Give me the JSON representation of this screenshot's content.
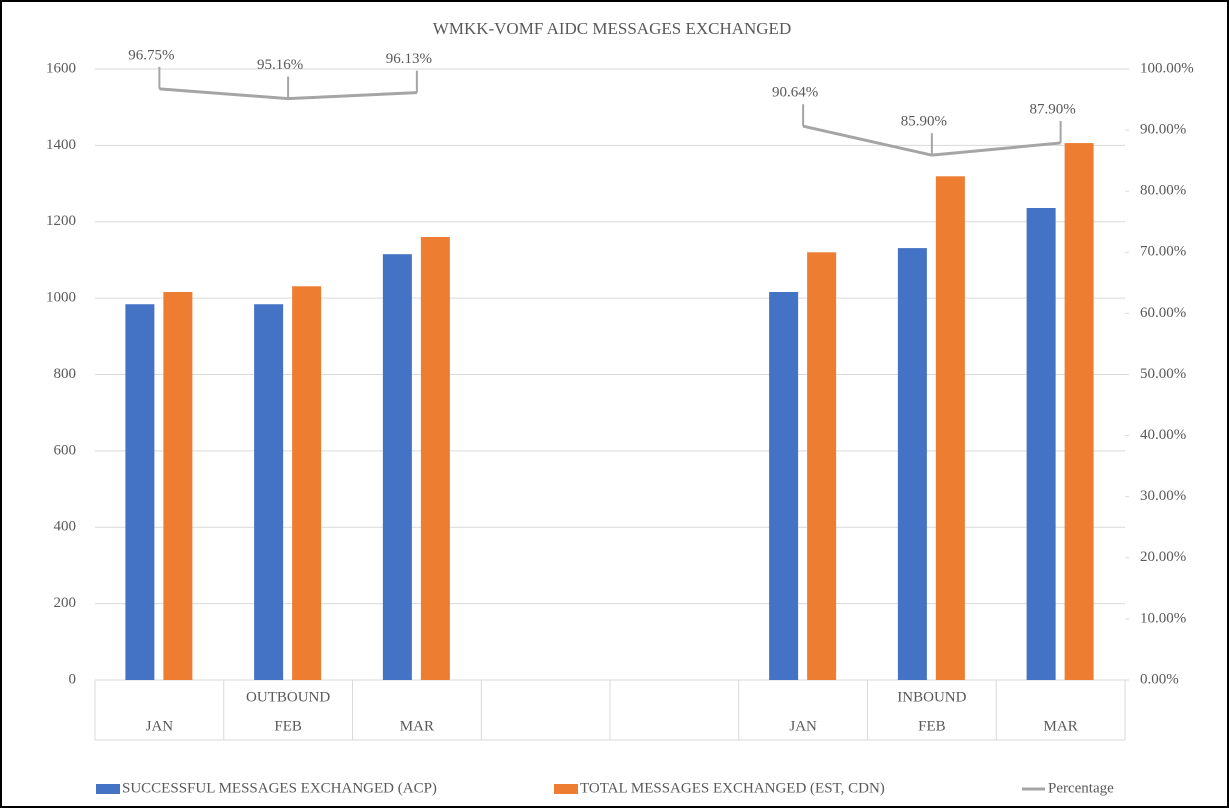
{
  "chart_data": {
    "type": "bar",
    "title": "WMKK-VOMF AIDC MESSAGES EXCHANGED",
    "categories": [
      "JAN",
      "FEB",
      "MAR",
      null,
      null,
      "JAN",
      "FEB",
      "MAR"
    ],
    "groups": [
      "OUTBOUND",
      "OUTBOUND",
      "OUTBOUND",
      null,
      null,
      "INBOUND",
      "INBOUND",
      "INBOUND"
    ],
    "series": [
      {
        "name": "SUCCESSFUL MESSAGES EXCHANGED (ACP)",
        "color": "#4472c4",
        "type": "bar",
        "values": [
          984,
          984,
          1115,
          null,
          null,
          1016,
          1131,
          1236
        ]
      },
      {
        "name": "TOTAL MESSAGES EXCHANGED (EST, CDN)",
        "color": "#ed7d31",
        "type": "bar",
        "values": [
          1016,
          1031,
          1160,
          null,
          null,
          1120,
          1319,
          1406
        ]
      },
      {
        "name": "Percentage",
        "color": "#a5a5a5",
        "type": "line",
        "axis": "y2",
        "values": [
          96.75,
          95.16,
          96.13,
          null,
          null,
          90.64,
          85.9,
          87.9
        ],
        "value_labels": [
          "96.75%",
          "95.16%",
          "96.13%",
          null,
          null,
          "90.64%",
          "85.90%",
          "87.90%"
        ]
      }
    ],
    "ylim": [
      0,
      1600
    ],
    "yticks": [
      0,
      200,
      400,
      600,
      800,
      1000,
      1200,
      1400,
      1600
    ],
    "y2lim": [
      0,
      100
    ],
    "y2ticks": [
      {
        "value": 0,
        "label": "0.00%"
      },
      {
        "value": 10,
        "label": "10.00%"
      },
      {
        "value": 20,
        "label": "20.00%"
      },
      {
        "value": 30,
        "label": "30.00%"
      },
      {
        "value": 40,
        "label": "40.00%"
      },
      {
        "value": 50,
        "label": "50.00%"
      },
      {
        "value": 60,
        "label": "60.00%"
      },
      {
        "value": 70,
        "label": "70.00%"
      },
      {
        "value": 80,
        "label": "80.00%"
      },
      {
        "value": 90,
        "label": "90.00%"
      },
      {
        "value": 100,
        "label": "100.00%"
      }
    ],
    "grid": true,
    "legend": "bottom"
  }
}
